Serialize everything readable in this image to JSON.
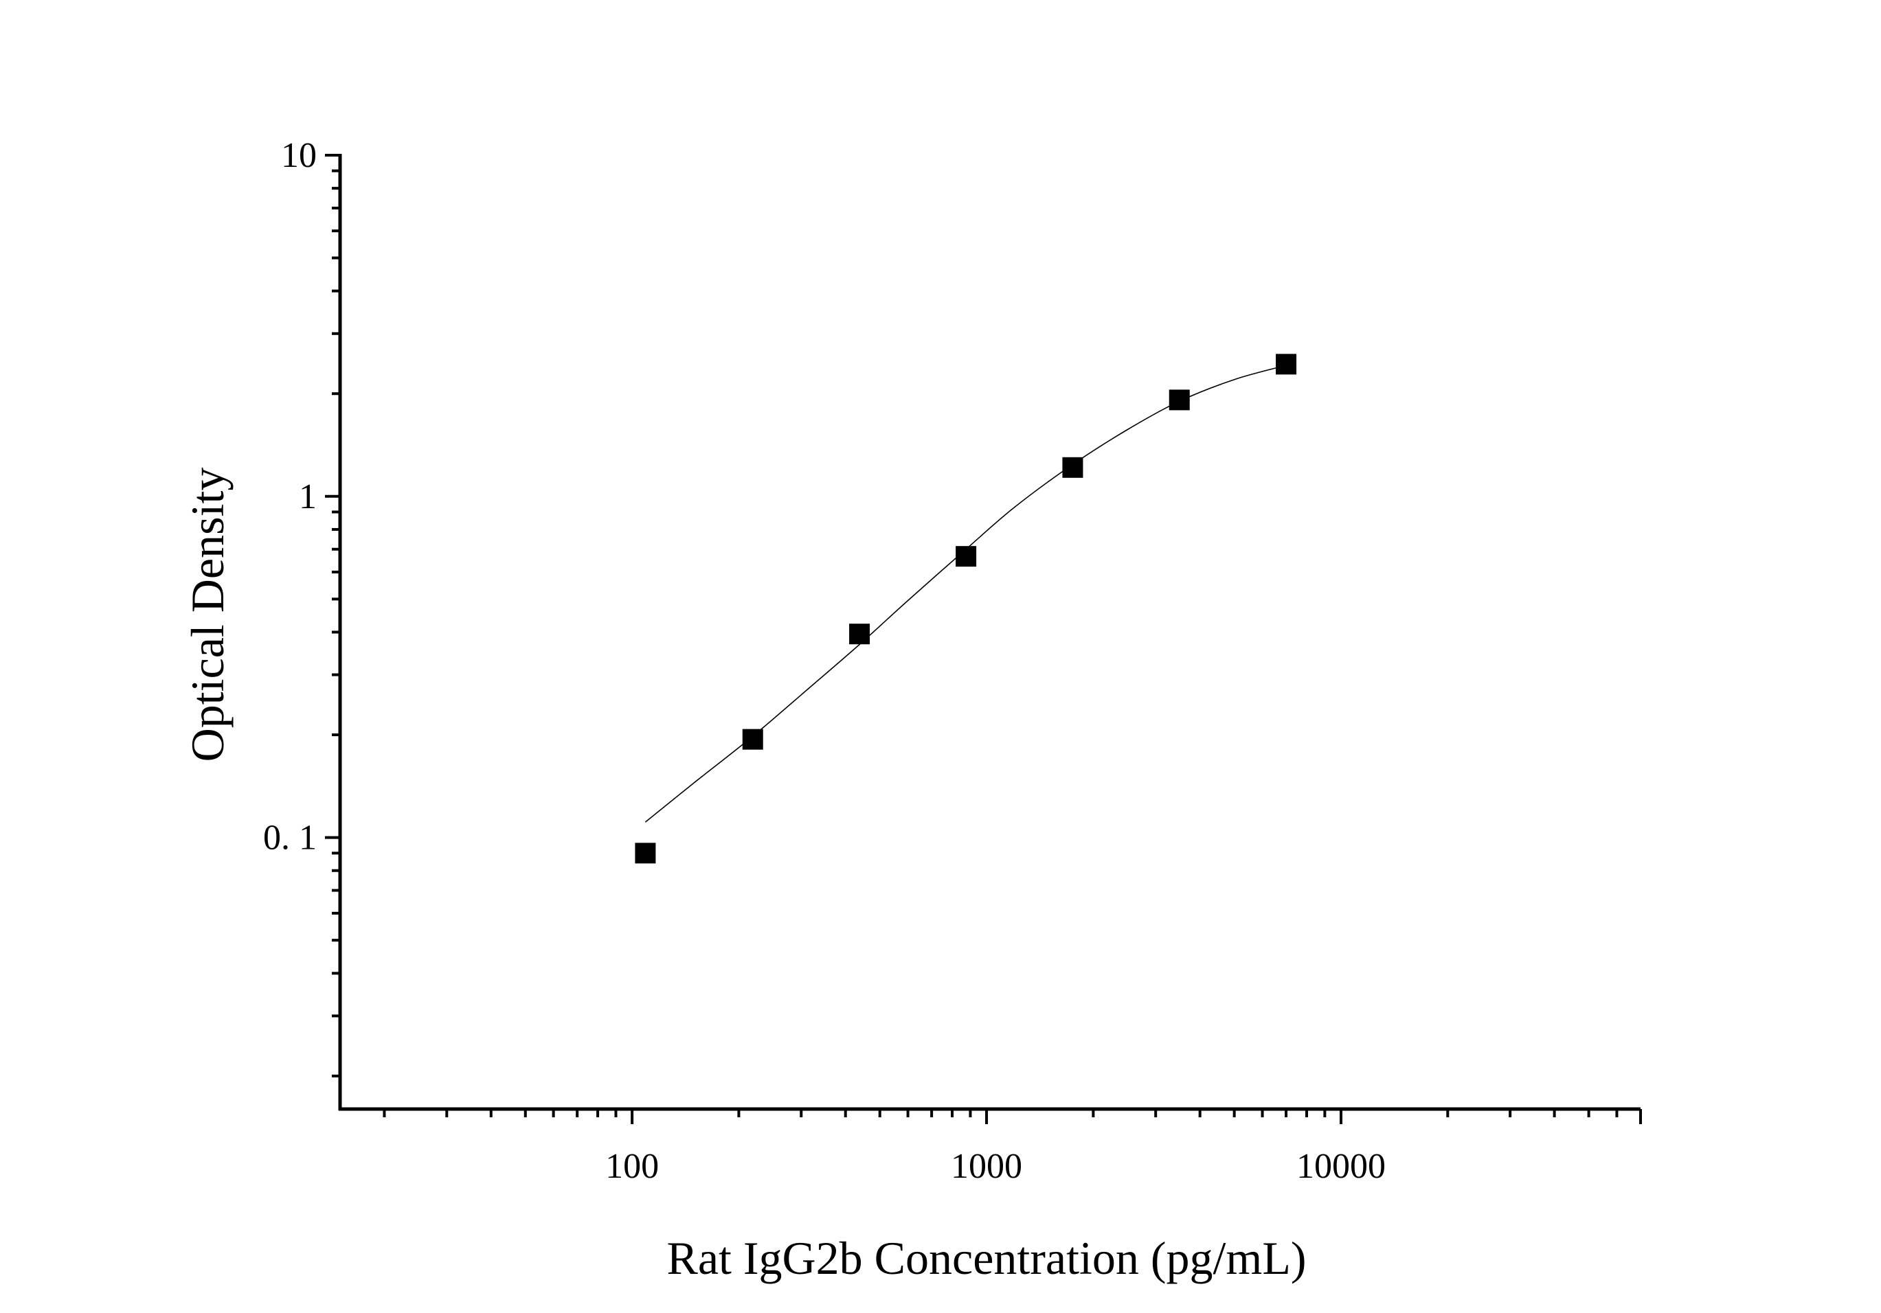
{
  "chart_data": {
    "type": "scatter",
    "xlabel": "Rat IgG2b Concentration (pg/mL)",
    "ylabel": "Optical Density",
    "x_scale": "log",
    "y_scale": "log",
    "xlim": [
      15,
      70000
    ],
    "ylim": [
      0.016,
      10
    ],
    "x_ticks": [
      {
        "value": 100,
        "label": "100"
      },
      {
        "value": 1000,
        "label": "1000"
      },
      {
        "value": 10000,
        "label": "10000"
      }
    ],
    "y_ticks": [
      {
        "value": 10,
        "label": "10"
      },
      {
        "value": 1,
        "label": "1"
      },
      {
        "value": 0.1,
        "label": "0. 1"
      }
    ],
    "grid": false,
    "legend": "none",
    "marker": "square",
    "color": "#000000",
    "points": [
      {
        "x": 109,
        "y": 0.09
      },
      {
        "x": 219,
        "y": 0.194
      },
      {
        "x": 438,
        "y": 0.395
      },
      {
        "x": 875,
        "y": 0.667
      },
      {
        "x": 1750,
        "y": 1.215
      },
      {
        "x": 3500,
        "y": 1.917
      },
      {
        "x": 7000,
        "y": 2.44
      }
    ],
    "fit_curve": [
      {
        "x": 109,
        "y": 0.111
      },
      {
        "x": 150,
        "y": 0.145
      },
      {
        "x": 219,
        "y": 0.198
      },
      {
        "x": 300,
        "y": 0.262
      },
      {
        "x": 438,
        "y": 0.368
      },
      {
        "x": 600,
        "y": 0.495
      },
      {
        "x": 875,
        "y": 0.7
      },
      {
        "x": 1200,
        "y": 0.93
      },
      {
        "x": 1750,
        "y": 1.24
      },
      {
        "x": 2500,
        "y": 1.57
      },
      {
        "x": 3500,
        "y": 1.9
      },
      {
        "x": 5000,
        "y": 2.2
      },
      {
        "x": 7000,
        "y": 2.42
      }
    ]
  }
}
